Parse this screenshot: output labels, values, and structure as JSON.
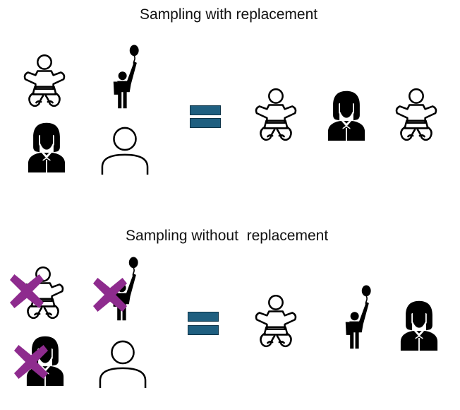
{
  "sections": [
    {
      "title": "Sampling with replacement",
      "population": [
        "baby",
        "child-balloon",
        "woman",
        "person"
      ],
      "removed": [],
      "sample": [
        "baby",
        "woman",
        "baby"
      ]
    },
    {
      "title": "Sampling without  replacement",
      "population": [
        "baby",
        "child-balloon",
        "woman",
        "person"
      ],
      "removed": [
        "baby",
        "child-balloon",
        "woman"
      ],
      "sample": [
        "baby",
        "child-balloon",
        "woman"
      ]
    }
  ],
  "colors": {
    "equals": "#1f5f80",
    "cross": "#8e2b8e",
    "figure": "#000000"
  },
  "icons": {
    "equals": "equals-icon",
    "cross": "cross-icon",
    "baby": "baby-icon",
    "child": "child-with-balloon-icon",
    "woman": "woman-icon",
    "person": "person-icon"
  }
}
